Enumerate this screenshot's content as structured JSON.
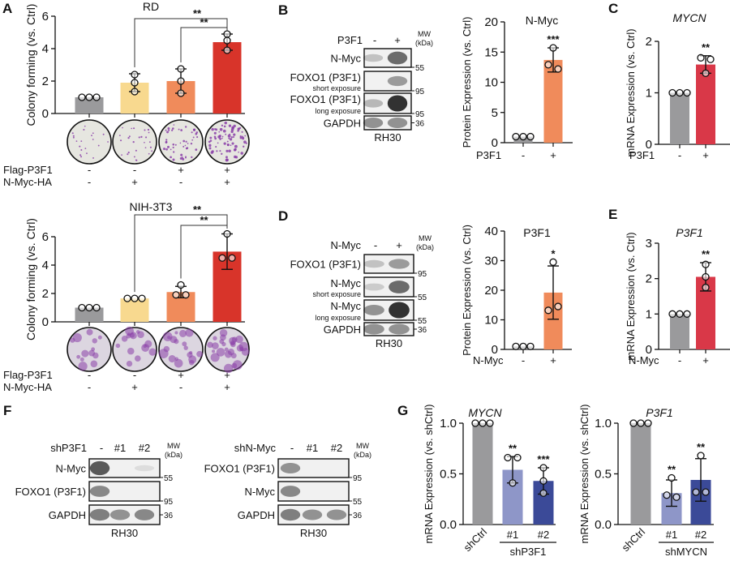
{
  "panel_letters": {
    "a": "A",
    "b": "B",
    "c": "C",
    "d": "D",
    "e": "E",
    "f": "F",
    "g": "G"
  },
  "colors": {
    "gray": "#9a9a9c",
    "yellow": "#f8d98f",
    "orange": "#f08b5b",
    "red": "#d8342a",
    "rose": "#d93848",
    "lightblue": "#8e96c8",
    "darkblue": "#3b4a98",
    "plate_colony": "#8a3fa8"
  },
  "chart_data": [
    {
      "type": "bar",
      "title": "RD",
      "ylabel": "Colony forming  (vs. Ctrl)",
      "ylim": [
        0,
        6
      ],
      "yticks": [
        "0",
        "2",
        "4",
        "6"
      ],
      "rows": [
        {
          "label": "Flag-P3F1",
          "values": [
            "-",
            "-",
            "+",
            "+"
          ]
        },
        {
          "label": "N-Myc-HA",
          "values": [
            "-",
            "+",
            "-",
            "+"
          ]
        }
      ],
      "values": [
        1.0,
        1.9,
        2.0,
        4.4
      ],
      "sd": [
        0,
        0.55,
        0.75,
        0.5
      ],
      "points": [
        [
          1,
          1,
          1
        ],
        [
          2.4,
          1.9,
          1.35
        ],
        [
          2.75,
          2.0,
          1.25
        ],
        [
          4.9,
          4.5,
          3.9
        ]
      ],
      "colors": [
        "gray",
        "yellow",
        "orange",
        "red"
      ],
      "significance": [
        {
          "from": 1,
          "to": 3,
          "label": "**"
        },
        {
          "from": 2,
          "to": 3,
          "label": "**"
        }
      ],
      "colony_density": [
        0.2,
        0.3,
        0.6,
        1.0
      ]
    },
    {
      "type": "bar",
      "title": "NIH-3T3",
      "ylabel": "Colony forming (vs. Ctrl)",
      "ylim": [
        0,
        6
      ],
      "yticks": [
        "0",
        "2",
        "4",
        "6"
      ],
      "rows": [
        {
          "label": "Flag-P3F1",
          "values": [
            "-",
            "-",
            "+",
            "+"
          ]
        },
        {
          "label": "N-Myc-HA",
          "values": [
            "-",
            "+",
            "-",
            "+"
          ]
        }
      ],
      "values": [
        1.0,
        1.65,
        2.1,
        4.95
      ],
      "sd": [
        0,
        0,
        0.4,
        1.25
      ],
      "points": [
        [
          1,
          1,
          1
        ],
        [
          1.65,
          1.65,
          1.65
        ],
        [
          2.6,
          1.9,
          1.9
        ],
        [
          6.2,
          4.5,
          4.5
        ]
      ],
      "colors": [
        "gray",
        "yellow",
        "orange",
        "red"
      ],
      "significance": [
        {
          "from": 1,
          "to": 3,
          "label": "**"
        },
        {
          "from": 2,
          "to": 3,
          "label": "**"
        }
      ],
      "colony_density": [
        0.3,
        0.45,
        0.6,
        0.9
      ]
    },
    {
      "type": "bar",
      "title": "N-Myc",
      "ylabel": "Protein Expression (vs. Ctrl)",
      "ylim": [
        0,
        20
      ],
      "yticks": [
        "0",
        "5",
        "10",
        "15",
        "20"
      ],
      "rows": [
        {
          "label": "P3F1",
          "values": [
            "-",
            "+"
          ]
        }
      ],
      "values": [
        1.0,
        13.7
      ],
      "sd": [
        0,
        2.0
      ],
      "points": [
        [
          1,
          1,
          1
        ],
        [
          15.7,
          12.9,
          12.2
        ]
      ],
      "colors": [
        "gray",
        "orange"
      ],
      "stars": [
        "",
        "***"
      ]
    },
    {
      "type": "bar",
      "title": "MYCN",
      "ylabel": "mRNA Expression (vs. Ctrl)",
      "ylim": [
        0,
        2
      ],
      "yticks": [
        "0",
        "1",
        "2"
      ],
      "rows": [
        {
          "label": "P3F1",
          "values": [
            "-",
            "+"
          ]
        }
      ],
      "values": [
        1.0,
        1.55
      ],
      "sd": [
        0,
        0.17
      ],
      "points": [
        [
          1,
          1,
          1
        ],
        [
          1.68,
          1.65,
          1.38
        ]
      ],
      "colors": [
        "gray",
        "rose"
      ],
      "stars": [
        "",
        "**"
      ]
    },
    {
      "type": "bar",
      "title": "P3F1",
      "ylabel": "Protein Expression (vs. Ctrl)",
      "ylim": [
        0,
        40
      ],
      "yticks": [
        "0",
        "10",
        "20",
        "30",
        "40"
      ],
      "rows": [
        {
          "label": "N-Myc",
          "values": [
            "-",
            "+"
          ]
        }
      ],
      "values": [
        1.0,
        19.2
      ],
      "sd": [
        0,
        9.0
      ],
      "points": [
        [
          1,
          1,
          1
        ],
        [
          29.5,
          13.2,
          14.5
        ]
      ],
      "colors": [
        "gray",
        "orange"
      ],
      "stars": [
        "",
        "*"
      ]
    },
    {
      "type": "bar",
      "title": "P3F1",
      "ylabel": "mRNA Expression (vs. Ctrl)",
      "ylim": [
        0,
        3
      ],
      "yticks": [
        "0",
        "1",
        "2",
        "3"
      ],
      "rows": [
        {
          "label": "N-Myc",
          "values": [
            "-",
            "+"
          ]
        }
      ],
      "values": [
        1.0,
        2.05
      ],
      "sd": [
        0,
        0.4
      ],
      "points": [
        [
          1,
          1,
          1
        ],
        [
          2.4,
          2.05,
          1.75
        ]
      ],
      "colors": [
        "gray",
        "rose"
      ],
      "stars": [
        "",
        "**"
      ]
    },
    {
      "type": "bar",
      "title": "MYCN",
      "ylabel": "mRNA Expression (vs. shCtrl)",
      "ylim": [
        0,
        1
      ],
      "yticks": [
        "0.0",
        "0.5",
        "1.0"
      ],
      "categories": [
        "shCtrl",
        "#1",
        "#2"
      ],
      "group_label": "shP3F1",
      "values": [
        1.0,
        0.54,
        0.43
      ],
      "sd": [
        0,
        0.13,
        0.13
      ],
      "points": [
        [
          1,
          1,
          1
        ],
        [
          0.66,
          0.66,
          0.41
        ],
        [
          0.56,
          0.43,
          0.31
        ]
      ],
      "colors": [
        "gray",
        "lightblue",
        "darkblue"
      ],
      "stars": [
        "",
        "**",
        "***"
      ]
    },
    {
      "type": "bar",
      "title": "P3F1",
      "ylabel": "mRNA Expression (vs. shCtrl)",
      "ylim": [
        0,
        1
      ],
      "yticks": [
        "0.0",
        "0.5",
        "1.0"
      ],
      "categories": [
        "shCtrl",
        "#1",
        "#2"
      ],
      "group_label": "shMYCN",
      "values": [
        1.0,
        0.31,
        0.44
      ],
      "sd": [
        0,
        0.13,
        0.21
      ],
      "points": [
        [
          1,
          1,
          1
        ],
        [
          0.46,
          0.29,
          0.27
        ],
        [
          0.68,
          0.32,
          0.32
        ]
      ],
      "colors": [
        "gray",
        "lightblue",
        "darkblue"
      ],
      "stars": [
        "",
        "**",
        "**"
      ]
    }
  ],
  "blots": [
    {
      "header": "P3F1",
      "lanes": [
        "-",
        "+"
      ],
      "mw_label": [
        "MW",
        "(kDa)"
      ],
      "caption": "RH30",
      "rows": [
        {
          "label": "N-Myc",
          "sub": "",
          "mw": "55",
          "bands": [
            0.25,
            0.7
          ]
        },
        {
          "label": "FOXO1 (P3F1)",
          "sub": "short exposure",
          "mw": "95",
          "bands": [
            0,
            0.45
          ]
        },
        {
          "label": "FOXO1 (P3F1)",
          "sub": "long exposure",
          "mw": "95",
          "bands": [
            0.3,
            1
          ]
        },
        {
          "label": "GAPDH",
          "sub": "",
          "mw": "36",
          "bands": [
            0.5,
            0.5
          ]
        }
      ]
    },
    {
      "header": "N-Myc",
      "lanes": [
        "-",
        "+"
      ],
      "mw_label": [
        "MW",
        "(kDa)"
      ],
      "caption": "RH30",
      "rows": [
        {
          "label": "FOXO1 (P3F1)",
          "sub": "",
          "mw": "95",
          "bands": [
            0.25,
            0.45
          ]
        },
        {
          "label": "N-Myc",
          "sub": "short exposure",
          "mw": "55",
          "bands": [
            0.2,
            0.7
          ]
        },
        {
          "label": "N-Myc",
          "sub": "long exposure",
          "mw": "55",
          "bands": [
            0.5,
            1
          ]
        },
        {
          "label": "GAPDH",
          "sub": "",
          "mw": "36",
          "bands": [
            0.5,
            0.5
          ]
        }
      ]
    },
    {
      "header": "shP3F1",
      "lanes": [
        "-",
        "#1",
        "#2"
      ],
      "mw_label": [
        "MW",
        "(kDa)"
      ],
      "caption": "RH30",
      "rows": [
        {
          "label": "N-Myc",
          "sub": "",
          "mw": "55",
          "bands": [
            0.8,
            0,
            0.1
          ]
        },
        {
          "label": "FOXO1 (P3F1)",
          "sub": "",
          "mw": "95",
          "bands": [
            0.55,
            0,
            0
          ]
        },
        {
          "label": "GAPDH",
          "sub": "",
          "mw": "36",
          "bands": [
            0.6,
            0.5,
            0.55
          ]
        }
      ]
    },
    {
      "header": "shN-Myc",
      "lanes": [
        "-",
        "#1",
        "#2"
      ],
      "mw_label": [
        "MW",
        "(kDa)"
      ],
      "caption": "RH30",
      "rows": [
        {
          "label": "FOXO1 (P3F1)",
          "sub": "",
          "mw": "95",
          "bands": [
            0.5,
            0,
            0
          ]
        },
        {
          "label": "N-Myc",
          "sub": "",
          "mw": "55",
          "bands": [
            0.55,
            0,
            0
          ]
        },
        {
          "label": "GAPDH",
          "sub": "",
          "mw": "36",
          "bands": [
            0.6,
            0.5,
            0.5
          ]
        }
      ]
    }
  ]
}
